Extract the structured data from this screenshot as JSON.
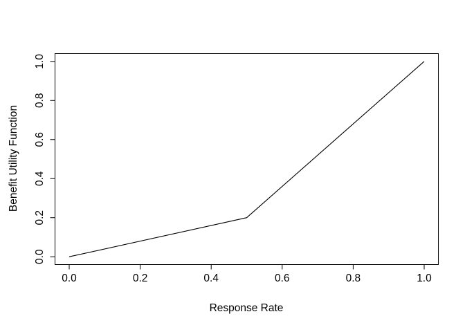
{
  "chart_data": {
    "type": "line",
    "title": "",
    "xlabel": "Response Rate",
    "ylabel": "Benefit Utility Function",
    "x": [
      0.0,
      0.5,
      1.0
    ],
    "y": [
      0.0,
      0.2,
      1.0
    ],
    "xlim": [
      0.0,
      1.0
    ],
    "ylim": [
      0.0,
      1.0
    ],
    "x_ticks": [
      0.0,
      0.2,
      0.4,
      0.6,
      0.8,
      1.0
    ],
    "y_ticks": [
      0.0,
      0.2,
      0.4,
      0.6,
      0.8,
      1.0
    ],
    "x_tick_labels": [
      "0.0",
      "0.2",
      "0.4",
      "0.6",
      "0.8",
      "1.0"
    ],
    "y_tick_labels": [
      "0.0",
      "0.2",
      "0.4",
      "0.6",
      "0.8",
      "1.0"
    ],
    "grid": false,
    "legend": null,
    "line_color": "#000000",
    "frame_color": "#000000",
    "text_color": "#000000",
    "background": "#ffffff"
  }
}
